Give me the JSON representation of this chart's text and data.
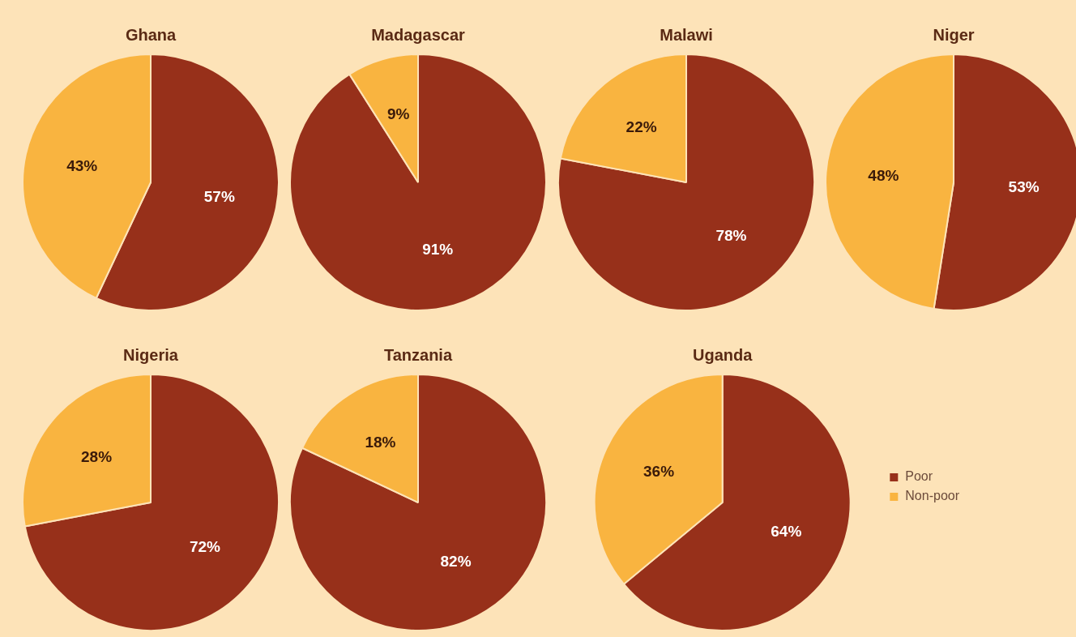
{
  "chart_data": [
    {
      "type": "pie",
      "title": "Ghana",
      "categories": [
        null,
        null
      ],
      "values": [
        57,
        43
      ],
      "colors": [
        "#97301a",
        "#f9b440"
      ],
      "value_labels": [
        "57%",
        "43%"
      ]
    },
    {
      "type": "pie",
      "title": "Madagascar",
      "categories": [
        null,
        null
      ],
      "values": [
        91,
        9
      ],
      "colors": [
        "#97301a",
        "#f9b440"
      ],
      "value_labels": [
        "91%",
        "9%"
      ]
    },
    {
      "type": "pie",
      "title": "Malawi",
      "categories": [
        null,
        null
      ],
      "values": [
        78,
        22
      ],
      "colors": [
        "#97301a",
        "#f9b440"
      ],
      "value_labels": [
        "78%",
        "22%"
      ]
    },
    {
      "type": "pie",
      "title": "Niger",
      "categories": [
        null,
        null
      ],
      "values": [
        53,
        48
      ],
      "colors": [
        "#97301a",
        "#f9b440"
      ],
      "value_labels": [
        "53%",
        "48%"
      ]
    },
    {
      "type": "pie",
      "title": "Nigeria",
      "categories": [
        null,
        null
      ],
      "values": [
        72,
        28
      ],
      "colors": [
        "#97301a",
        "#f9b440"
      ],
      "value_labels": [
        "72%",
        "28%"
      ]
    },
    {
      "type": "pie",
      "title": "Tanzania",
      "categories": [
        null,
        null
      ],
      "values": [
        82,
        18
      ],
      "colors": [
        "#97301a",
        "#f9b440"
      ],
      "value_labels": [
        "82%",
        "18%"
      ]
    },
    {
      "type": "pie",
      "title": "Uganda",
      "categories": [
        "Poor",
        "Non-poor"
      ],
      "values": [
        64,
        36
      ],
      "colors": [
        "#97301a",
        "#f9b440"
      ],
      "value_labels": [
        "64%",
        "36%"
      ],
      "legend": "right"
    }
  ]
}
